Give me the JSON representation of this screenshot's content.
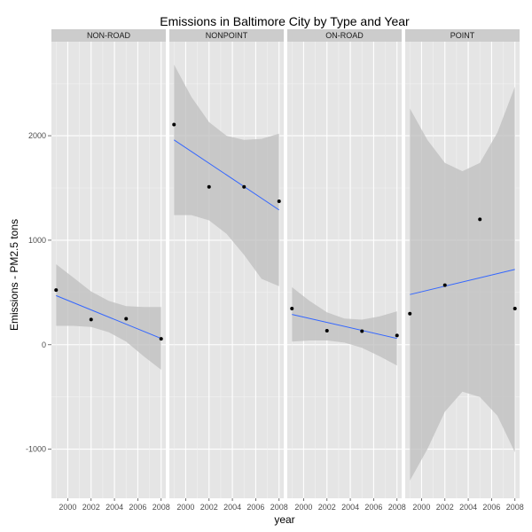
{
  "chart_data": {
    "type": "scatter",
    "title": "Emissions in Baltimore City by Type and Year",
    "xlabel": "year",
    "ylabel": "Emissions - PM2.5 tons",
    "xlim": [
      1998.6,
      2008.4
    ],
    "ylim": [
      -1470,
      2900
    ],
    "x_ticks": [
      2000,
      2002,
      2004,
      2006,
      2008
    ],
    "y_ticks": [
      -1000,
      0,
      1000,
      2000
    ],
    "grid": true,
    "colors": {
      "panel_bg": "#e5e5e5",
      "grid": "#f2f2f2",
      "strip_bg": "#cccccc",
      "point": "#000000",
      "fit_line": "#3366ff",
      "band": "#bdbdbd"
    },
    "panels": [
      {
        "name": "NON-ROAD",
        "points": [
          {
            "x": 1999,
            "y": 523
          },
          {
            "x": 2002,
            "y": 241
          },
          {
            "x": 2005,
            "y": 248
          },
          {
            "x": 2008,
            "y": 56
          }
        ],
        "fit": {
          "x": [
            1999,
            2008
          ],
          "y": [
            470,
            60
          ]
        },
        "band": {
          "x": [
            1999,
            2000.5,
            2002,
            2003.5,
            2005,
            2006.5,
            2008
          ],
          "upper": [
            770,
            640,
            510,
            420,
            370,
            360,
            360
          ],
          "lower": [
            180,
            180,
            170,
            120,
            30,
            -110,
            -240
          ]
        }
      },
      {
        "name": "NONPOINT",
        "points": [
          {
            "x": 1999,
            "y": 2107
          },
          {
            "x": 2002,
            "y": 1510
          },
          {
            "x": 2005,
            "y": 1510
          },
          {
            "x": 2008,
            "y": 1373
          }
        ],
        "fit": {
          "x": [
            1999,
            2008
          ],
          "y": [
            1960,
            1290
          ]
        },
        "band": {
          "x": [
            1999,
            2000.5,
            2002,
            2003.5,
            2005,
            2006.5,
            2008
          ],
          "upper": [
            2680,
            2370,
            2130,
            2000,
            1960,
            1970,
            2020
          ],
          "lower": [
            1240,
            1240,
            1190,
            1060,
            860,
            630,
            560
          ]
        }
      },
      {
        "name": "ON-ROAD",
        "points": [
          {
            "x": 1999,
            "y": 346
          },
          {
            "x": 2002,
            "y": 134
          },
          {
            "x": 2005,
            "y": 130
          },
          {
            "x": 2008,
            "y": 88
          }
        ],
        "fit": {
          "x": [
            1999,
            2008
          ],
          "y": [
            290,
            60
          ]
        },
        "band": {
          "x": [
            1999,
            2000.5,
            2002,
            2003.5,
            2005,
            2006.5,
            2008
          ],
          "upper": [
            550,
            420,
            310,
            250,
            240,
            270,
            320
          ],
          "lower": [
            30,
            40,
            40,
            20,
            -30,
            -110,
            -200
          ]
        }
      },
      {
        "name": "POINT",
        "points": [
          {
            "x": 1999,
            "y": 297
          },
          {
            "x": 2002,
            "y": 570
          },
          {
            "x": 2005,
            "y": 1200
          },
          {
            "x": 2008,
            "y": 346
          }
        ],
        "fit": {
          "x": [
            1999,
            2008
          ],
          "y": [
            480,
            720
          ]
        },
        "band": {
          "x": [
            1999,
            2000.5,
            2002,
            2003.5,
            2005,
            2006.5,
            2008
          ],
          "upper": [
            2260,
            1960,
            1740,
            1660,
            1740,
            2030,
            2470
          ],
          "lower": [
            -1300,
            -1000,
            -640,
            -450,
            -500,
            -680,
            -1030
          ]
        }
      }
    ]
  }
}
